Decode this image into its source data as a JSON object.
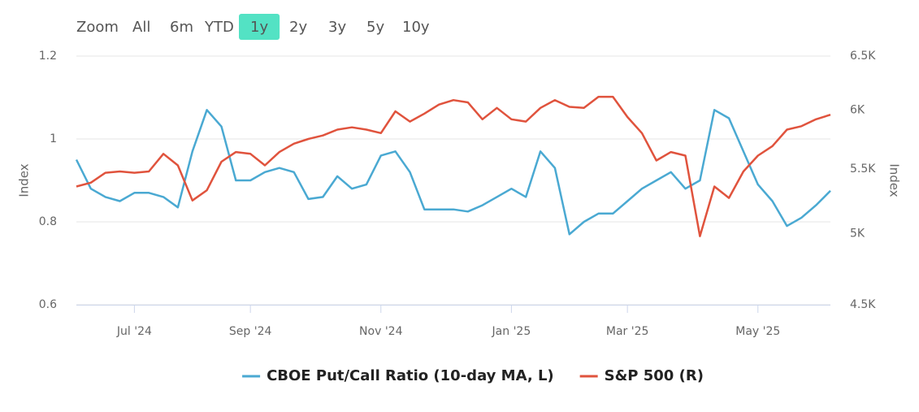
{
  "chart_data": {
    "type": "line",
    "range_selector": {
      "label": "Zoom",
      "buttons": [
        "All",
        "6m",
        "YTD",
        "1y",
        "2y",
        "3y",
        "5y",
        "10y"
      ],
      "selected": 3,
      "selected_color": "#53e2c4"
    },
    "categories": [
      null,
      null,
      null,
      null,
      "Jul '24",
      null,
      null,
      null,
      null,
      null,
      null,
      null,
      "Sep '24",
      null,
      null,
      null,
      null,
      null,
      null,
      null,
      null,
      "Nov '24",
      null,
      null,
      null,
      null,
      null,
      null,
      null,
      null,
      "Jan '25",
      null,
      null,
      null,
      null,
      null,
      null,
      null,
      "Mar '25",
      null,
      null,
      null,
      null,
      null,
      null,
      null,
      null,
      "May '25",
      null,
      null,
      null,
      null,
      null
    ],
    "y_label": "Index",
    "y2_label": "Index",
    "ylim": [
      0.6,
      1.2
    ],
    "yticks": [
      0.6,
      0.8,
      1,
      1.2
    ],
    "y2lim": [
      4500,
      6500
    ],
    "y2log": true,
    "y2ticks": [
      {
        "value": 4500,
        "label": "4.5K"
      },
      {
        "value": 5000,
        "label": "5K"
      },
      {
        "value": 5500,
        "label": "5.5K"
      },
      {
        "value": 6000,
        "label": "6K"
      },
      {
        "value": 6500,
        "label": "6.5K"
      }
    ],
    "grid": true,
    "legend": "bottom",
    "series": [
      {
        "name": "CBOE Put/Call Ratio (10-day MA, L)",
        "color": "#4aa9d2",
        "values": [
          0.95,
          0.88,
          0.86,
          0.85,
          0.87,
          0.87,
          0.86,
          0.835,
          0.97,
          1.07,
          1.03,
          0.9,
          0.9,
          0.92,
          0.93,
          0.92,
          0.855,
          0.86,
          0.91,
          0.88,
          0.89,
          0.96,
          0.97,
          0.92,
          0.83,
          0.83,
          0.83,
          0.825,
          0.84,
          0.86,
          0.88,
          0.86,
          0.97,
          0.93,
          0.77,
          0.8,
          0.82,
          0.82,
          0.85,
          0.88,
          0.9,
          0.92,
          0.88,
          0.9,
          1.07,
          1.05,
          0.97,
          0.89,
          0.85,
          0.79,
          0.81,
          0.84,
          0.875
        ]
      },
      {
        "name": "S&P 500 (R)",
        "color": "#e0533d",
        "axis": "y2",
        "values": [
          5360,
          5390,
          5470,
          5480,
          5470,
          5480,
          5625,
          5530,
          5250,
          5330,
          5560,
          5640,
          5625,
          5530,
          5640,
          5710,
          5750,
          5780,
          5830,
          5850,
          5830,
          5800,
          5990,
          5900,
          5970,
          6050,
          6090,
          6070,
          5920,
          6020,
          5920,
          5900,
          6020,
          6090,
          6030,
          6020,
          6120,
          6120,
          5940,
          5800,
          5570,
          5640,
          5610,
          4980,
          5360,
          5270,
          5480,
          5610,
          5690,
          5830,
          5860,
          5920,
          5960
        ]
      }
    ]
  }
}
